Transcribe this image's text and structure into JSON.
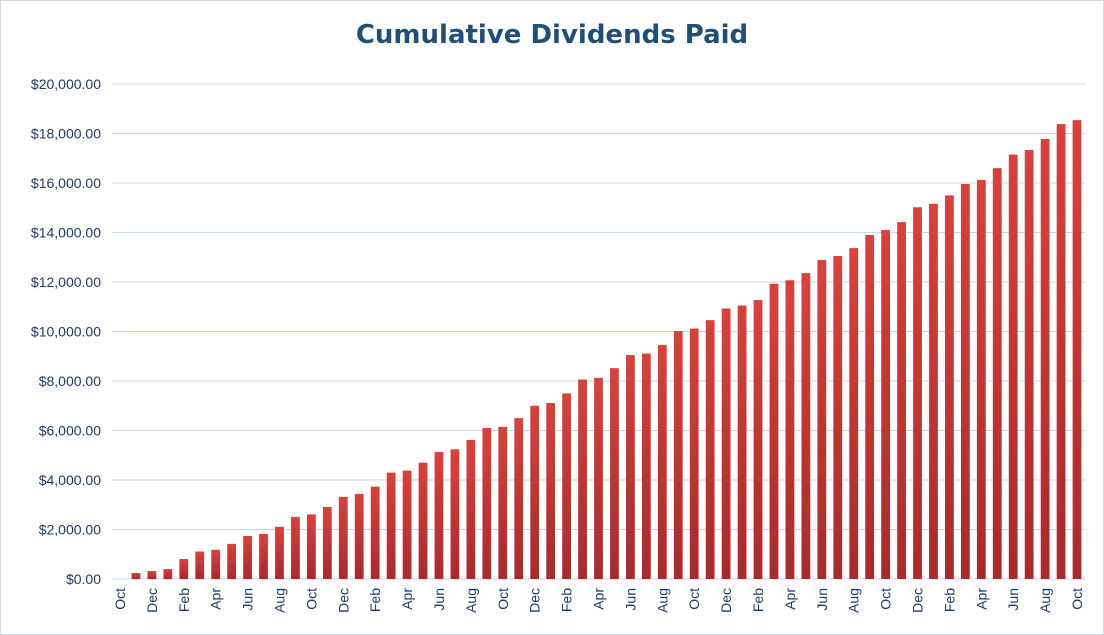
{
  "chart_data": {
    "type": "bar",
    "title": "Cumulative Dividends Paid",
    "xlabel": "",
    "ylabel": "",
    "ylim": [
      0,
      20000
    ],
    "yticks": [
      0,
      2000,
      4000,
      6000,
      8000,
      10000,
      12000,
      14000,
      16000,
      18000,
      20000
    ],
    "ytick_labels": [
      "$0.00",
      "$2,000.00",
      "$4,000.00",
      "$6,000.00",
      "$8,000.00",
      "$10,000.00",
      "$12,000.00",
      "$14,000.00",
      "$16,000.00",
      "$18,000.00",
      "$20,000.00"
    ],
    "categories": [
      "Oct",
      "Nov",
      "Dec",
      "Jan",
      "Feb",
      "Mar",
      "Apr",
      "May",
      "Jun",
      "Jul",
      "Aug",
      "Sep",
      "Oct",
      "Nov",
      "Dec",
      "Jan",
      "Feb",
      "Mar",
      "Apr",
      "May",
      "Jun",
      "Jul",
      "Aug",
      "Sep",
      "Oct",
      "Nov",
      "Dec",
      "Jan",
      "Feb",
      "Mar",
      "Apr",
      "May",
      "Jun",
      "Jul",
      "Aug",
      "Sep",
      "Oct",
      "Nov",
      "Dec",
      "Jan",
      "Feb",
      "Mar",
      "Apr",
      "May",
      "Jun",
      "Jul",
      "Aug",
      "Sep",
      "Oct",
      "Nov",
      "Dec",
      "Jan",
      "Feb",
      "Mar",
      "Apr",
      "May",
      "Jun",
      "Jul",
      "Aug",
      "Sep",
      "Oct"
    ],
    "shown_tick_labels": [
      "Oct",
      "",
      "Dec",
      "",
      "Feb",
      "",
      "Apr",
      "",
      "Jun",
      "",
      "Aug",
      "",
      "Oct",
      "",
      "Dec",
      "",
      "Feb",
      "",
      "Apr",
      "",
      "Jun",
      "",
      "Aug",
      "",
      "Oct",
      "",
      "Dec",
      "",
      "Feb",
      "",
      "Apr",
      "",
      "Jun",
      "",
      "Aug",
      "",
      "Oct",
      "",
      "Dec",
      "",
      "Feb",
      "",
      "Apr",
      "",
      "Jun",
      "",
      "Aug",
      "",
      "Oct",
      "",
      "Dec",
      "",
      "Feb",
      "",
      "Apr",
      "",
      "Jun",
      "",
      "Aug",
      "",
      "Oct"
    ],
    "values": [
      0,
      240,
      320,
      400,
      810,
      1110,
      1180,
      1420,
      1740,
      1820,
      2110,
      2510,
      2610,
      2910,
      3320,
      3440,
      3730,
      4300,
      4380,
      4700,
      5130,
      5240,
      5620,
      6100,
      6150,
      6500,
      7000,
      7110,
      7500,
      8060,
      8130,
      8520,
      9050,
      9110,
      9460,
      10020,
      10120,
      10460,
      10930,
      11050,
      11270,
      11930,
      12070,
      12360,
      12890,
      13050,
      13370,
      13900,
      14100,
      14420,
      15020,
      15160,
      15500,
      15960,
      16120,
      16600,
      17150,
      17330,
      17780,
      18380,
      18540
    ],
    "grid": true,
    "colors": {
      "bar_top": "#d9413d",
      "bar_bottom": "#a92a2a",
      "grid": "#c5d9ee",
      "axis_text": "#1f3864",
      "title": "#1f4e79"
    }
  }
}
